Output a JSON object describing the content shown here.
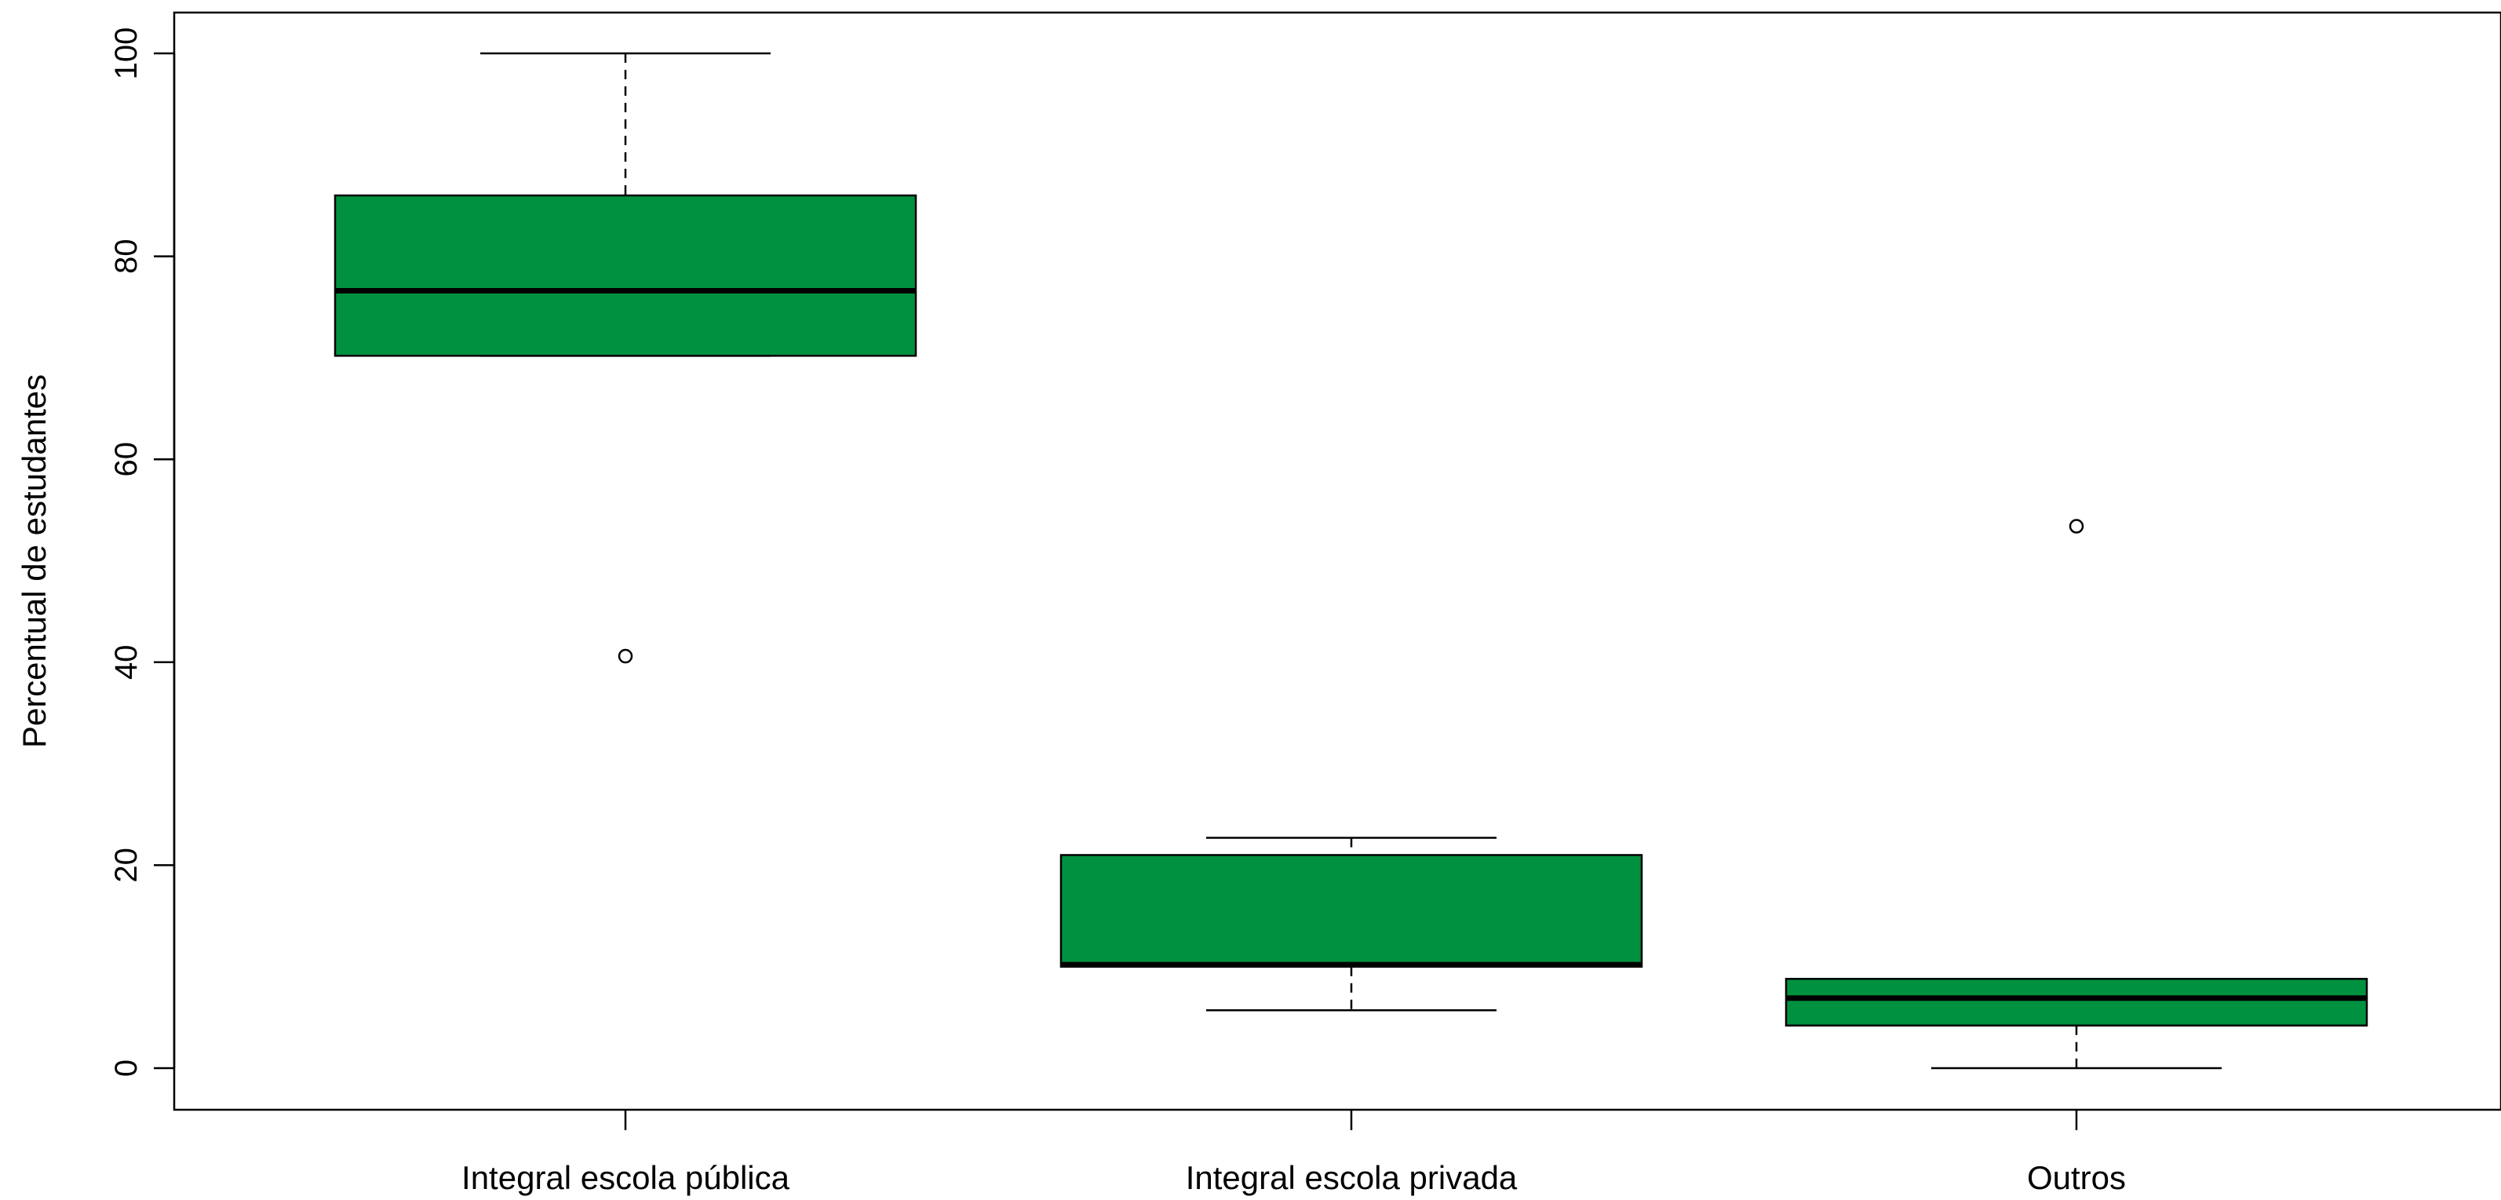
{
  "chart_data": {
    "type": "boxplot",
    "title": "",
    "xlabel": "",
    "ylabel": "Percentual de estudantes",
    "ylim": [
      0,
      100
    ],
    "yticks": [
      0,
      20,
      40,
      60,
      80,
      100
    ],
    "grid": false,
    "legend": "none",
    "categories": [
      "Integral escola pública",
      "Integral escola privada",
      "Outros"
    ],
    "boxes": [
      {
        "category": "Integral escola pública",
        "whisker_low": 70.2,
        "q1": 70.2,
        "median": 76.6,
        "q3": 86.0,
        "whisker_high": 100,
        "outliers": [
          40.6
        ]
      },
      {
        "category": "Integral escola privada",
        "whisker_low": 5.7,
        "q1": 10.0,
        "median": 10.2,
        "q3": 21.0,
        "whisker_high": 22.7,
        "outliers": []
      },
      {
        "category": "Outros",
        "whisker_low": 0,
        "q1": 4.2,
        "median": 6.9,
        "q3": 8.8,
        "whisker_high": 8.8,
        "outliers": [
          53.4
        ]
      }
    ],
    "colors": {
      "box_fill": "#009140",
      "box_stroke": "#000000",
      "median": "#000000",
      "whisker": "#000000"
    }
  }
}
